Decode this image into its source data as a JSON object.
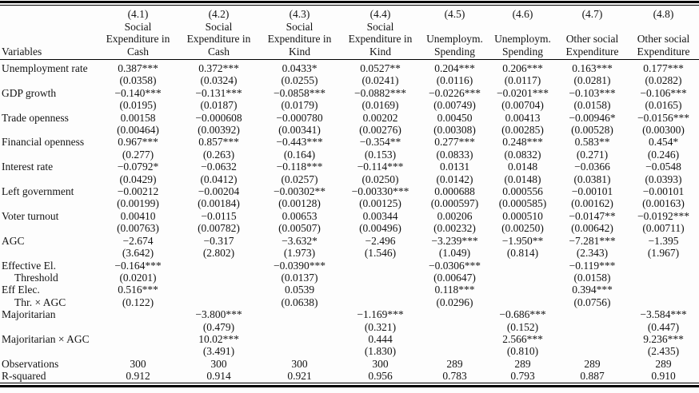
{
  "table": {
    "variables_header": "Variables",
    "columns": [
      {
        "id": "(4.1)",
        "title": [
          "Social",
          "Expenditure in",
          "Cash"
        ]
      },
      {
        "id": "(4.2)",
        "title": [
          "Social",
          "Expenditure in",
          "Cash"
        ]
      },
      {
        "id": "(4.3)",
        "title": [
          "Social",
          "Expenditure in",
          "Kind"
        ]
      },
      {
        "id": "(4.4)",
        "title": [
          "Social",
          "Expenditure in",
          "Kind"
        ]
      },
      {
        "id": "(4.5)",
        "title": [
          "Unemploym.",
          "Spending"
        ]
      },
      {
        "id": "(4.6)",
        "title": [
          "Unemploym.",
          "Spending"
        ]
      },
      {
        "id": "(4.7)",
        "title": [
          "Other social",
          "Expenditure"
        ]
      },
      {
        "id": "(4.8)",
        "title": [
          "Other social",
          "Expenditure"
        ]
      }
    ],
    "rows": [
      {
        "label": "Unemployment rate",
        "label2": "",
        "coef": [
          "0.387***",
          "0.372***",
          "0.0433*",
          "0.0527**",
          "0.204***",
          "0.206***",
          "0.163***",
          "0.177***"
        ],
        "se": [
          "(0.0358)",
          "(0.0324)",
          "(0.0255)",
          "(0.0241)",
          "(0.0116)",
          "(0.0117)",
          "(0.0281)",
          "(0.0282)"
        ]
      },
      {
        "label": "GDP growth",
        "label2": "",
        "coef": [
          "−0.140***",
          "−0.131***",
          "−0.0858***",
          "−0.0882***",
          "−0.0226***",
          "−0.0201***",
          "−0.103***",
          "−0.106***"
        ],
        "se": [
          "(0.0195)",
          "(0.0187)",
          "(0.0179)",
          "(0.0169)",
          "(0.00749)",
          "(0.00704)",
          "(0.0158)",
          "(0.0165)"
        ]
      },
      {
        "label": "Trade openness",
        "label2": "",
        "coef": [
          "0.00158",
          "−0.000608",
          "−0.000780",
          "0.00202",
          "0.00450",
          "0.00413",
          "−0.00946*",
          "−0.0156***"
        ],
        "se": [
          "(0.00464)",
          "(0.00392)",
          "(0.00341)",
          "(0.00276)",
          "(0.00308)",
          "(0.00285)",
          "(0.00528)",
          "(0.00300)"
        ]
      },
      {
        "label": "Financial openness",
        "label2": "",
        "coef": [
          "0.967***",
          "0.857***",
          "−0.443***",
          "−0.354**",
          "0.277***",
          "0.248***",
          "0.583**",
          "0.454*"
        ],
        "se": [
          "(0.277)",
          "(0.263)",
          "(0.164)",
          "(0.153)",
          "(0.0833)",
          "(0.0832)",
          "(0.271)",
          "(0.246)"
        ]
      },
      {
        "label": "Interest rate",
        "label2": "",
        "coef": [
          "−0.0792*",
          "−0.0632",
          "−0.118***",
          "−0.114***",
          "0.0131",
          "0.0148",
          "−0.0366",
          "−0.0548"
        ],
        "se": [
          "(0.0429)",
          "(0.0412)",
          "(0.0257)",
          "(0.0250)",
          "(0.0142)",
          "(0.0148)",
          "(0.0381)",
          "(0.0393)"
        ]
      },
      {
        "label": "Left government",
        "label2": "",
        "coef": [
          "−0.00212",
          "−0.00204",
          "−0.00302**",
          "−0.00330***",
          "0.000688",
          "0.000556",
          "−0.00101",
          "−0.00101"
        ],
        "se": [
          "(0.00199)",
          "(0.00184)",
          "(0.00128)",
          "(0.00125)",
          "(0.000597)",
          "(0.000585)",
          "(0.00162)",
          "(0.00163)"
        ]
      },
      {
        "label": "Voter turnout",
        "label2": "",
        "coef": [
          "0.00410",
          "−0.0115",
          "0.00653",
          "0.00344",
          "0.00206",
          "0.000510",
          "−0.0147**",
          "−0.0192***"
        ],
        "se": [
          "(0.00763)",
          "(0.00782)",
          "(0.00507)",
          "(0.00496)",
          "(0.00232)",
          "(0.00250)",
          "(0.00642)",
          "(0.00711)"
        ]
      },
      {
        "label": "AGC",
        "label2": "",
        "coef": [
          "−2.674",
          "−0.317",
          "−3.632*",
          "−2.496",
          "−3.239***",
          "−1.950**",
          "−7.281***",
          "−1.395"
        ],
        "se": [
          "(3.642)",
          "(2.802)",
          "(1.973)",
          "(1.546)",
          "(1.049)",
          "(0.814)",
          "(2.343)",
          "(1.967)"
        ]
      },
      {
        "label": "Effective El.",
        "label2": "Threshold",
        "coef": [
          "−0.164***",
          "",
          "−0.0390***",
          "",
          "−0.0306***",
          "",
          "−0.119***",
          ""
        ],
        "se": [
          "(0.0201)",
          "",
          "(0.0137)",
          "",
          "(0.00647)",
          "",
          "(0.0158)",
          ""
        ]
      },
      {
        "label": "Eff Elec.",
        "label2": "Thr. × AGC",
        "coef": [
          "0.516***",
          "",
          "0.0539",
          "",
          "0.118***",
          "",
          "0.394***",
          ""
        ],
        "se": [
          "(0.122)",
          "",
          "(0.0638)",
          "",
          "(0.0296)",
          "",
          "(0.0756)",
          ""
        ]
      },
      {
        "label": "Majoritarian",
        "label2": "",
        "coef": [
          "",
          "−3.800***",
          "",
          "−1.169***",
          "",
          "−0.686***",
          "",
          "−3.584***"
        ],
        "se": [
          "",
          "(0.479)",
          "",
          "(0.321)",
          "",
          "(0.152)",
          "",
          "(0.447)"
        ]
      },
      {
        "label": "Majoritarian × AGC",
        "label2": "",
        "coef": [
          "",
          "10.02***",
          "",
          "0.444",
          "",
          "2.566***",
          "",
          "9.236***"
        ],
        "se": [
          "",
          "(3.491)",
          "",
          "(1.830)",
          "",
          "(0.810)",
          "",
          "(2.435)"
        ]
      }
    ],
    "stats": [
      {
        "label": "Observations",
        "values": [
          "300",
          "300",
          "300",
          "300",
          "289",
          "289",
          "289",
          "289"
        ]
      },
      {
        "label": "R-squared",
        "values": [
          "0.912",
          "0.914",
          "0.921",
          "0.956",
          "0.783",
          "0.793",
          "0.887",
          "0.910"
        ]
      }
    ]
  }
}
